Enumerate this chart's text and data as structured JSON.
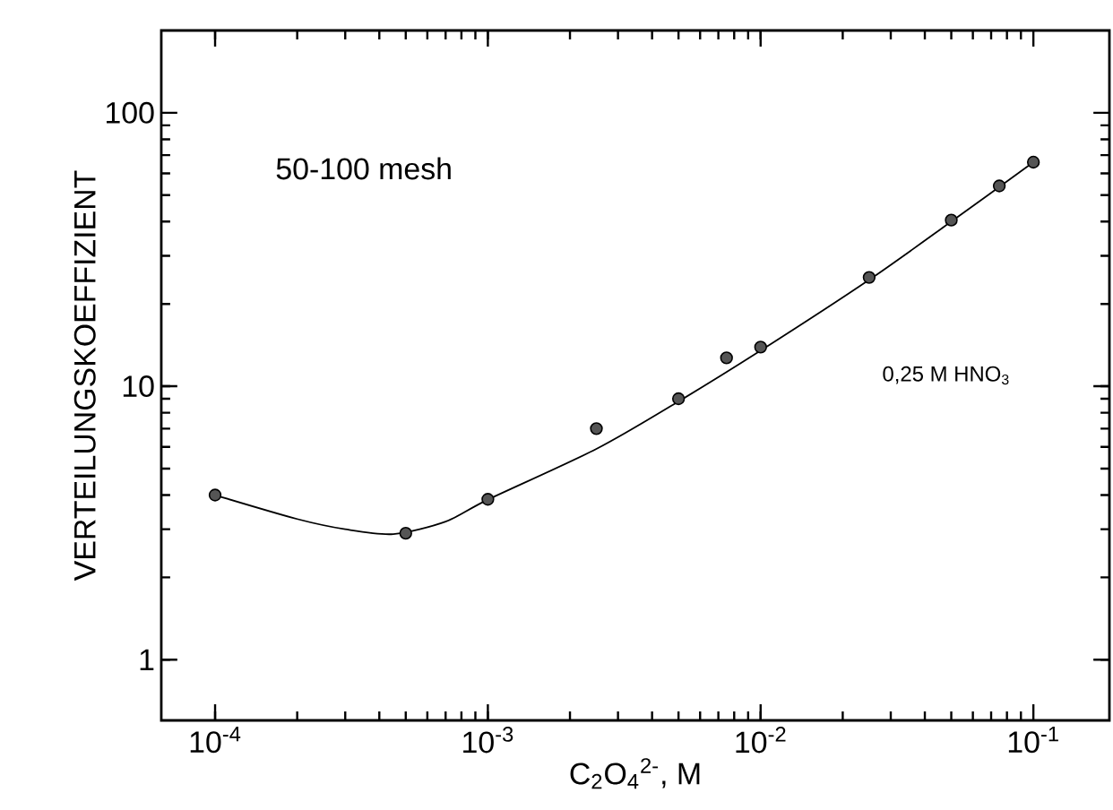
{
  "chart_data": {
    "type": "scatter",
    "log": "xy",
    "xlabel": "C$_{2}$O$_{4}$$^{2-}$, M",
    "ylabel": "VERTEILUNGSKOEFFIZIENT",
    "annotations": [
      "50-100 mesh",
      "0,25 M HNO$_{3}$"
    ],
    "xlim": [
      6.35e-05,
      0.19
    ],
    "ylim": [
      0.6,
      200
    ],
    "xticks": [
      {
        "value": 0.0001,
        "label": "10$^{-4}$"
      },
      {
        "value": 0.001,
        "label": "10$^{-3}$"
      },
      {
        "value": 0.01,
        "label": "10$^{-2}$"
      },
      {
        "value": 0.1,
        "label": "10$^{-1}$"
      }
    ],
    "yticks": [
      1,
      10,
      100
    ],
    "grid": false,
    "series": [
      {
        "marker": "circle",
        "color": "#555555",
        "x": [
          0.0001,
          0.0005,
          0.001,
          0.0025,
          0.005,
          0.0075,
          0.01,
          0.025,
          0.05,
          0.075,
          0.1
        ],
        "values": [
          4.0,
          2.9,
          3.86,
          7.0,
          9.0,
          12.7,
          13.9,
          25,
          40.5,
          54,
          66
        ]
      },
      {
        "type": "line",
        "marker": "none",
        "line_style": "solid",
        "color": "#000000",
        "x": [
          0.0001,
          0.0002,
          0.0003,
          0.00045,
          0.0007,
          0.001,
          0.0025,
          0.005,
          0.01,
          0.025,
          0.05,
          0.1
        ],
        "values": [
          4.0,
          3.27,
          3.0,
          2.88,
          3.2,
          3.85,
          5.9,
          8.8,
          13.5,
          24.5,
          40,
          66
        ]
      }
    ]
  }
}
